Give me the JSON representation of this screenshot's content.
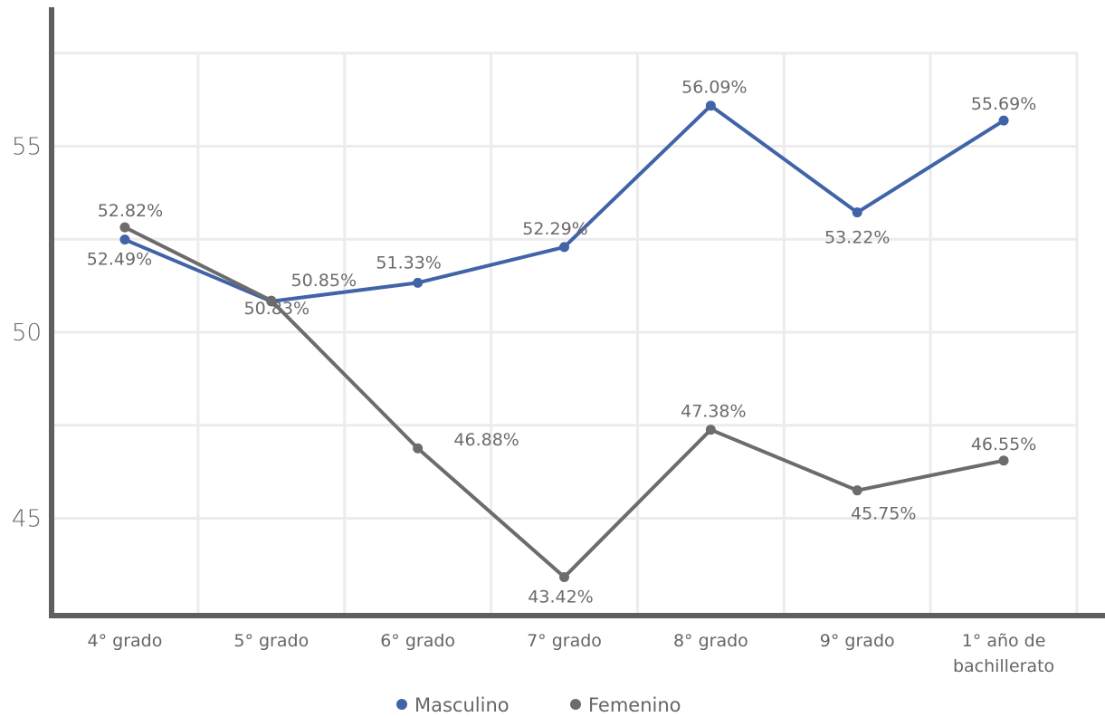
{
  "chart_data": {
    "type": "line",
    "categories": [
      [
        "4° grado"
      ],
      [
        "5° grado"
      ],
      [
        "6° grado"
      ],
      [
        "7° grado"
      ],
      [
        "8° grado"
      ],
      [
        "9° grado"
      ],
      [
        "1° año de",
        "bachillerato"
      ]
    ],
    "series": [
      {
        "name": "Masculino",
        "color": "#4163a8",
        "values": [
          52.49,
          50.83,
          51.33,
          52.29,
          56.09,
          53.22,
          55.69
        ],
        "labels": [
          "52.49%",
          "50.83%",
          "51.33%",
          "52.29%",
          "56.09%",
          "53.22%",
          "55.69%"
        ]
      },
      {
        "name": "Femenino",
        "color": "#6c6c6c",
        "values": [
          52.82,
          50.85,
          46.88,
          43.42,
          47.38,
          45.75,
          46.55
        ],
        "labels": [
          "52.82%",
          "50.85%",
          "46.88%",
          "43.42%",
          "47.38%",
          "45.75%",
          "46.55%"
        ]
      }
    ],
    "yticks": [
      {
        "value": 45,
        "label": "45"
      },
      {
        "value": 50,
        "label": "50"
      },
      {
        "value": 55,
        "label": "55"
      }
    ],
    "ylim": [
      42.5,
      57.5
    ],
    "grid": true,
    "legend": "bottom-center",
    "axis_color": "#5f5f5f",
    "grid_color": "#ececec"
  }
}
